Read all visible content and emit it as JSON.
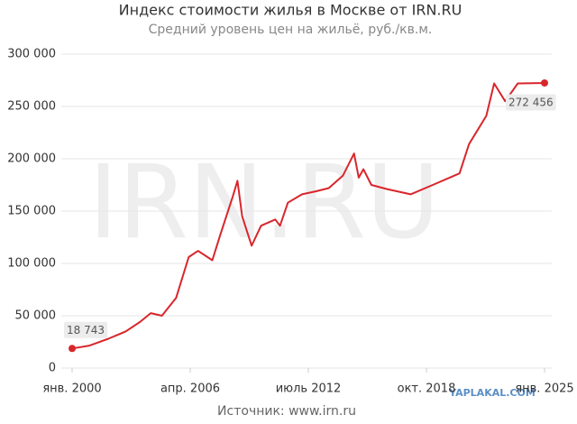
{
  "chart_data": {
    "type": "line",
    "title": "Индекс стоимости жилья в Москве от IRN.RU",
    "subtitle": "Средний уровень цен на жильё, руб./кв.м.",
    "source": "Источник: www.irn.ru",
    "watermark": "IRN.RU",
    "credit": "YAPLAKAL.COM",
    "x": [
      "2000-01",
      "2000-12",
      "2001-12",
      "2002-11",
      "2003-08",
      "2004-03",
      "2004-10",
      "2005-07",
      "2006-03",
      "2006-09",
      "2007-06",
      "2007-11",
      "2008-07",
      "2008-10",
      "2009-01",
      "2009-07",
      "2010-01",
      "2010-10",
      "2011-01",
      "2011-06",
      "2012-03",
      "2012-12",
      "2013-08",
      "2014-05",
      "2014-12",
      "2015-03",
      "2015-06",
      "2015-11",
      "2016-09",
      "2017-12",
      "2019-02",
      "2020-07",
      "2021-01",
      "2021-12",
      "2022-05",
      "2022-12",
      "2023-08",
      "2025-01"
    ],
    "series": [
      {
        "name": "Индекс IRN.RU",
        "color": "#d9262b",
        "values": [
          18743,
          21500,
          28000,
          35000,
          44000,
          52500,
          50000,
          67000,
          106000,
          112000,
          103000,
          127000,
          164000,
          179000,
          145000,
          117000,
          136000,
          142000,
          136000,
          158000,
          166000,
          169000,
          172000,
          184000,
          205000,
          182000,
          190000,
          175000,
          171000,
          166000,
          175000,
          186000,
          214000,
          241000,
          272000,
          255000,
          272000,
          272456
        ]
      }
    ],
    "annotations": [
      {
        "x": "2000-01",
        "value": 18743,
        "label": "18 743"
      },
      {
        "x": "2025-01",
        "value": 272456,
        "label": "272 456"
      }
    ],
    "xlim": [
      "2000-01",
      "2025-01"
    ],
    "xticks": [
      {
        "value": "2000-01",
        "label": "янв. 2000"
      },
      {
        "value": "2006-04",
        "label": "апр. 2006"
      },
      {
        "value": "2012-07",
        "label": "июль 2012"
      },
      {
        "value": "2018-10",
        "label": "окт. 2018"
      },
      {
        "value": "2025-01",
        "label": "янв. 2025"
      }
    ],
    "ylim": [
      0,
      300000
    ],
    "yticks": [
      0,
      {
        "value": 50000,
        "label": "50 000"
      },
      {
        "value": 100000,
        "label": "100 000"
      },
      {
        "value": 150000,
        "label": "150 000"
      },
      {
        "value": 200000,
        "label": "200 000"
      },
      {
        "value": 250000,
        "label": "250 000"
      },
      {
        "value": 300000,
        "label": "300 000"
      }
    ],
    "grid": true
  }
}
